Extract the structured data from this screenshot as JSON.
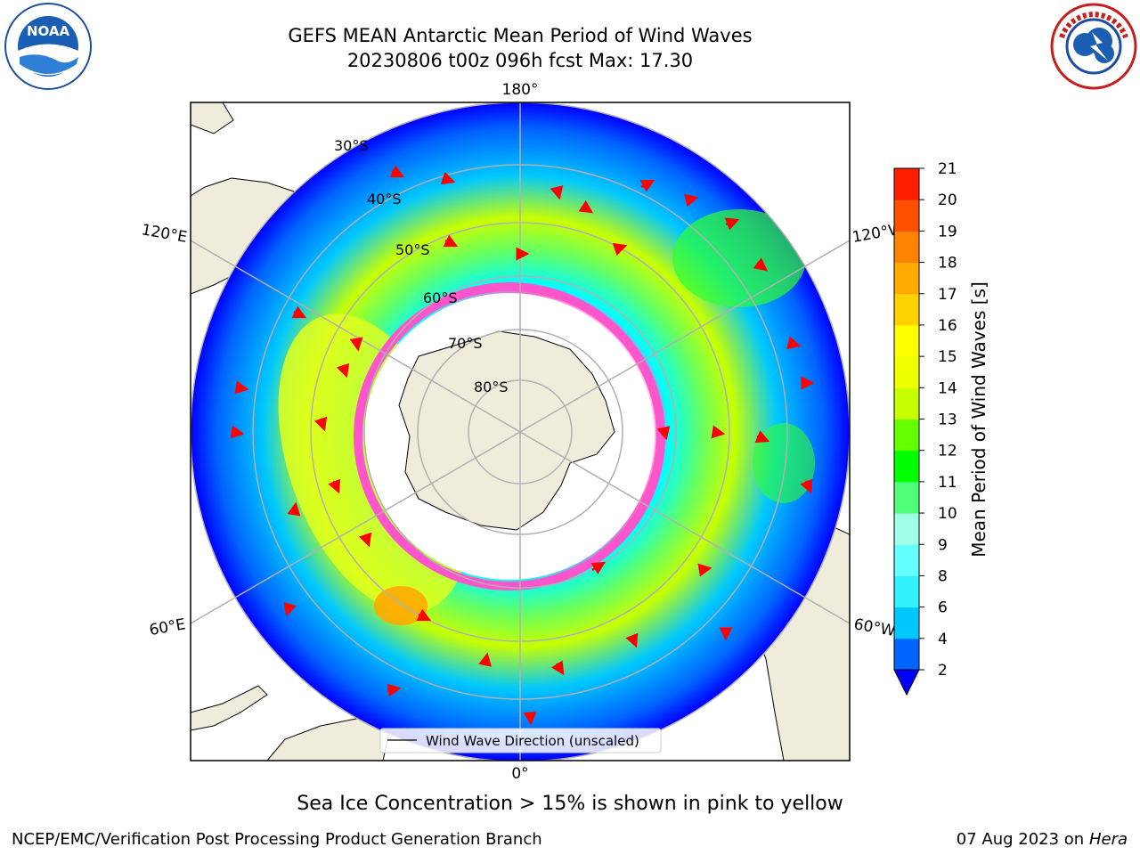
{
  "title": {
    "line1": "GEFS MEAN Antarctic Mean Period of Wind Waves",
    "line2": "20230806 t00z 096h fcst   Max: 17.30"
  },
  "logos": {
    "noaa": {
      "text": "NOAA",
      "icon": "noaa-logo-icon"
    },
    "nws": {
      "icon": "nws-logo-icon"
    }
  },
  "map": {
    "projection": "south-polar-stereographic",
    "meridian_labels": {
      "top": "180°",
      "upper_left": "120°E",
      "upper_right": "120°W",
      "lower_left": "60°E",
      "lower_right": "60°W",
      "bottom": "0°"
    },
    "parallel_labels": [
      "30°S",
      "40°S",
      "50°S",
      "60°S",
      "70°S",
      "80°S"
    ],
    "legend": {
      "label": "Wind Wave Direction (unscaled)"
    },
    "land_color": "#efecdc",
    "arrow_color": "#ff0000"
  },
  "colorbar": {
    "label": "Mean Period of Wind Waves [s]",
    "ticks": [
      "2",
      "4",
      "6",
      "8",
      "9",
      "10",
      "11",
      "12",
      "13",
      "14",
      "15",
      "16",
      "17",
      "18",
      "19",
      "20",
      "21"
    ],
    "colors": [
      "#0000ff",
      "#0064ff",
      "#00c8ff",
      "#32f0ff",
      "#64ffff",
      "#a0ffe6",
      "#50ff78",
      "#00ff00",
      "#64ff00",
      "#c8ff00",
      "#f0ff00",
      "#ffff00",
      "#ffd200",
      "#ffaa00",
      "#ff8200",
      "#ff5000",
      "#ff1e00",
      "#ff0000"
    ]
  },
  "footer": {
    "note": "Sea Ice Concentration > 15% is shown in pink to yellow",
    "credit": "NCEP/EMC/Verification Post Processing Product Generation Branch",
    "date": "07 Aug 2023 on",
    "host": "Hera"
  }
}
